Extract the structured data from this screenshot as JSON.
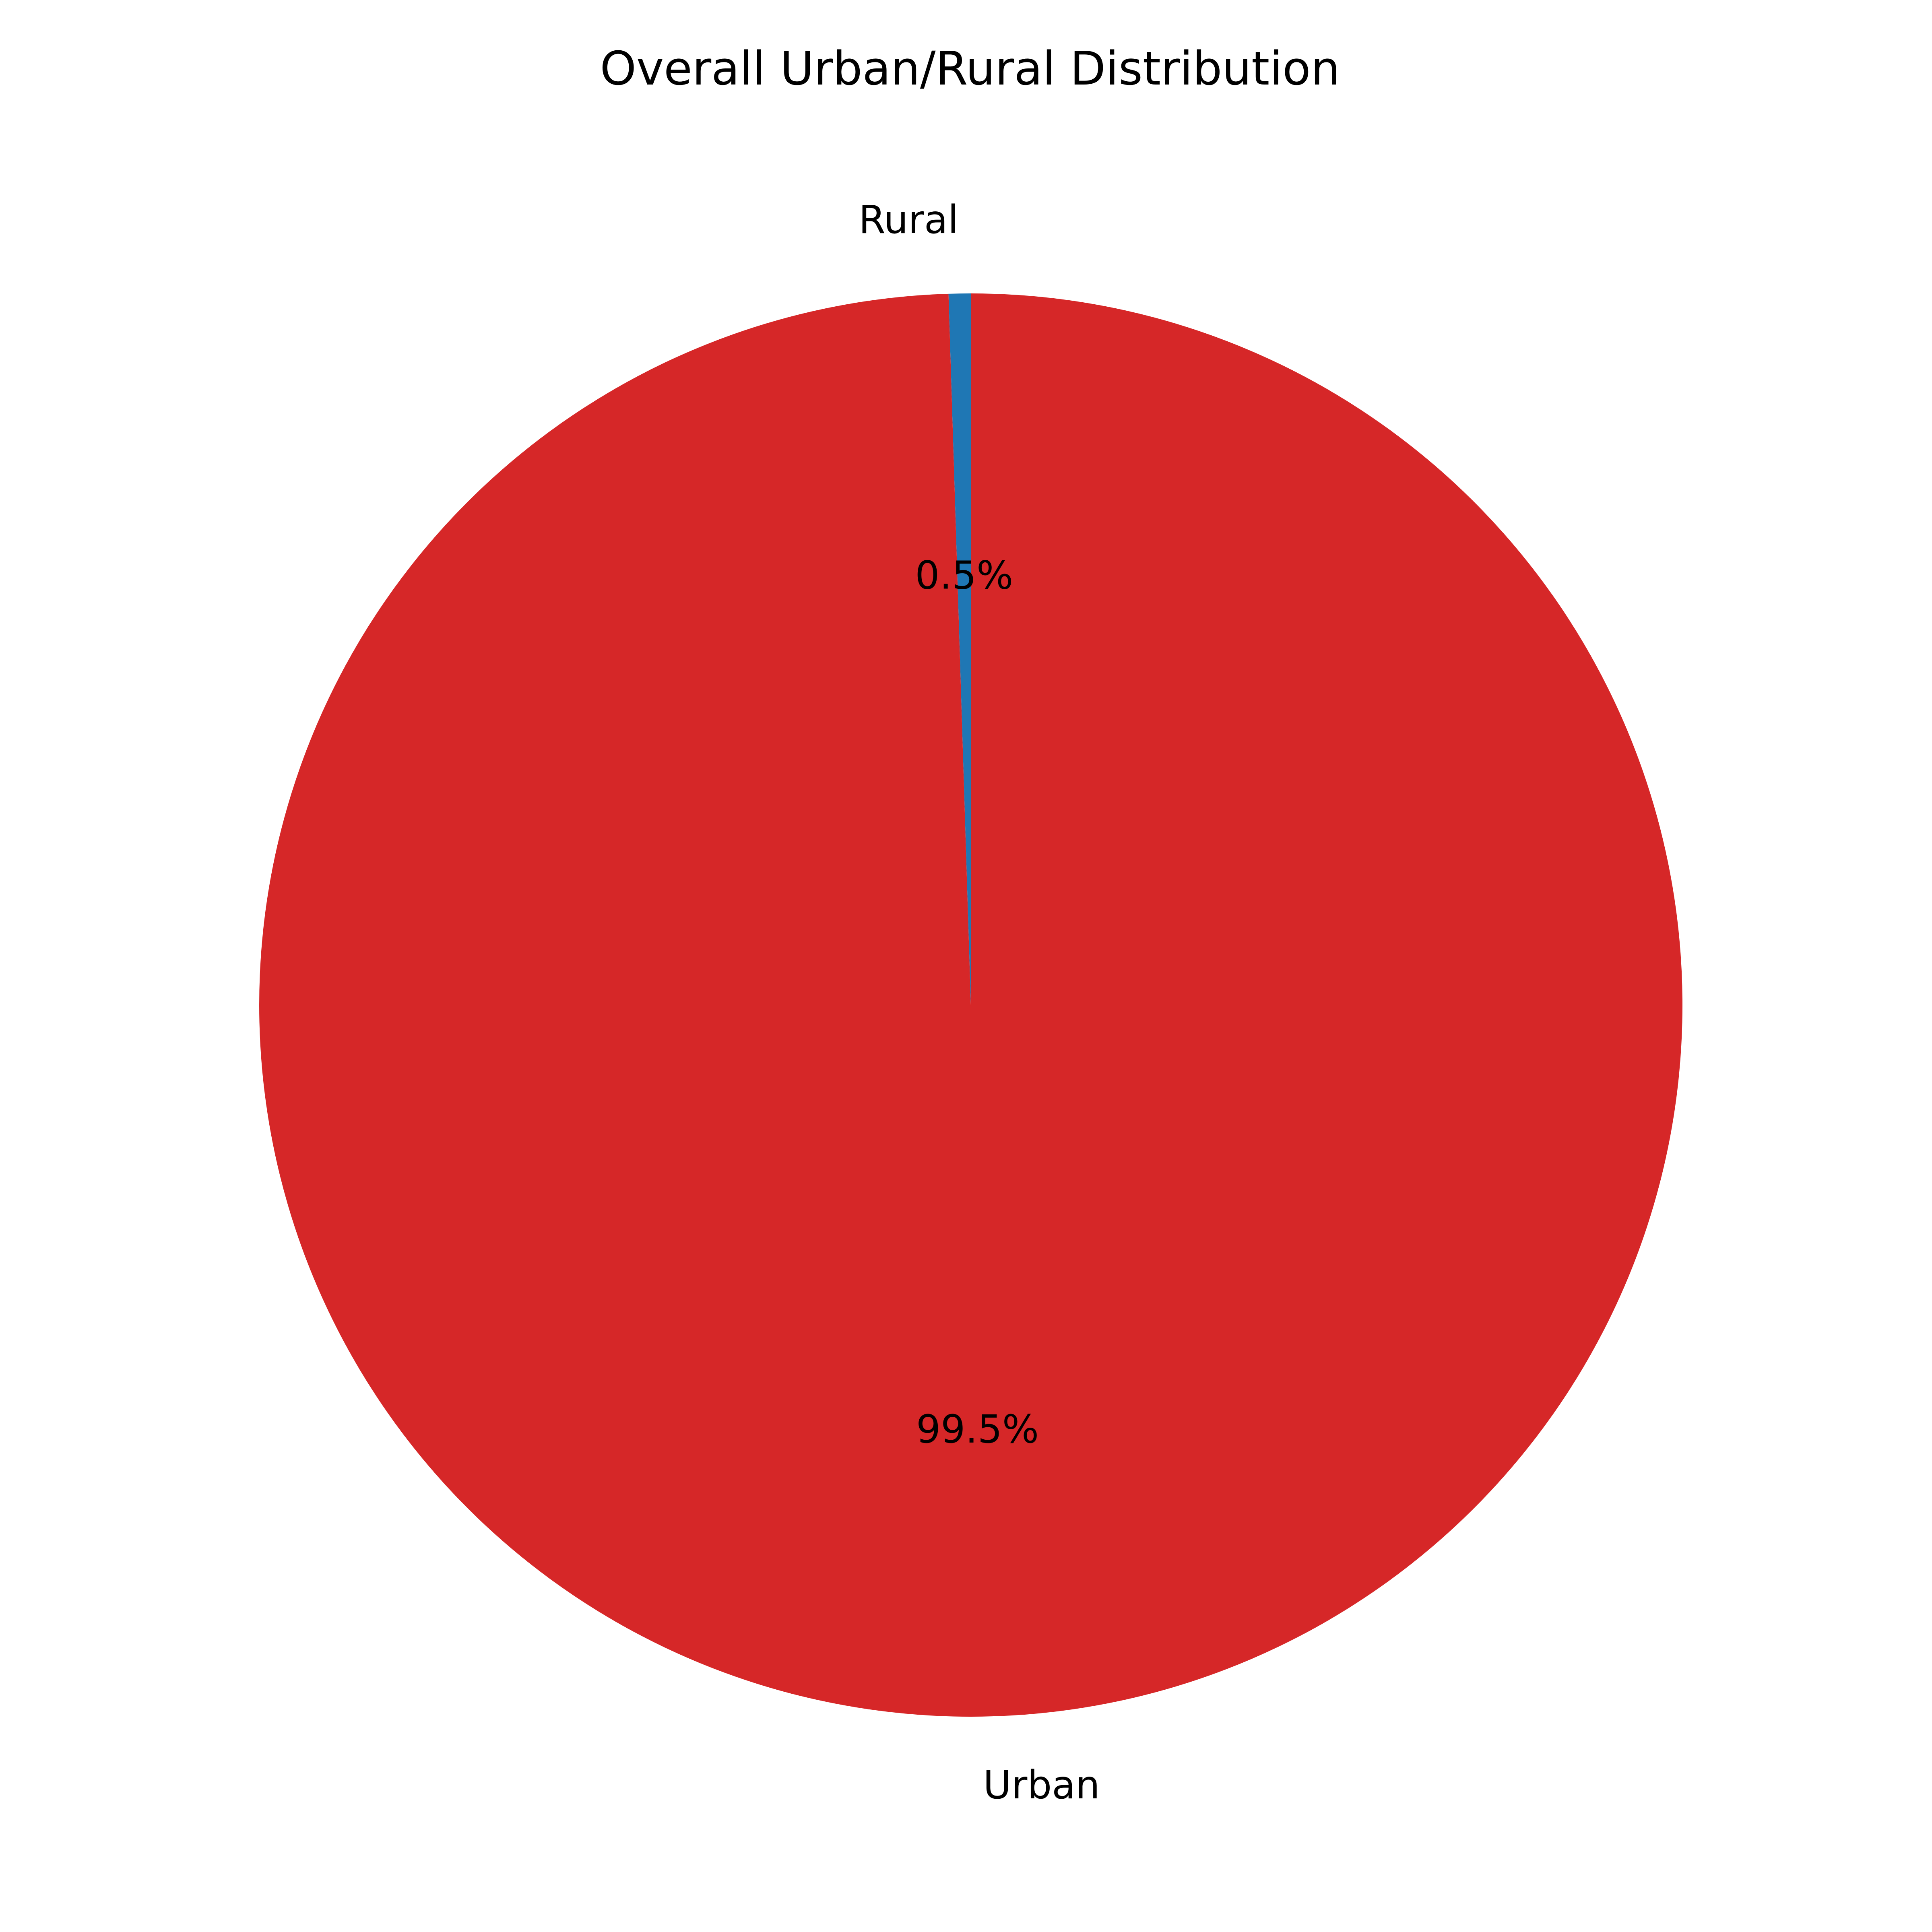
{
  "chart_data": {
    "type": "pie",
    "title": "Overall Urban/Rural Distribution",
    "slices": [
      {
        "label": "Rural",
        "value": 0.5,
        "pct_label": "0.5%",
        "color": "#1f77b4"
      },
      {
        "label": "Urban",
        "value": 99.5,
        "pct_label": "99.5%",
        "color": "#d62728"
      }
    ],
    "start_angle_deg": 90,
    "direction": "counterclockwise",
    "legend": "none"
  }
}
